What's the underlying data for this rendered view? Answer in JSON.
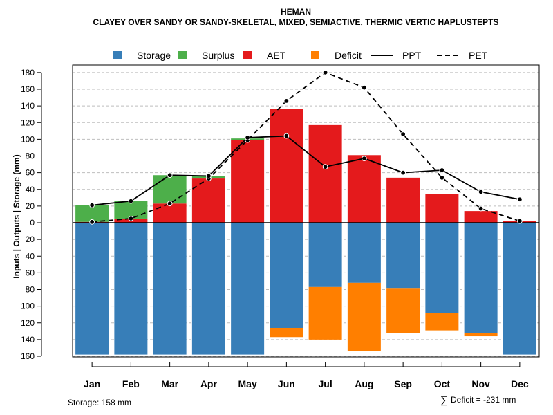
{
  "chart_data": {
    "type": "bar",
    "title": "HEMAN",
    "subtitle": "CLAYEY OVER SANDY OR SANDY-SKELETAL, MIXED, SEMIACTIVE, THERMIC VERTIC HAPLUSTEPTS",
    "ylabel": "Inputs | Outputs | Storage    (mm)",
    "ylim": [
      -160,
      180
    ],
    "categories": [
      "Jan",
      "Feb",
      "Mar",
      "Apr",
      "May",
      "Jun",
      "Jul",
      "Aug",
      "Sep",
      "Oct",
      "Nov",
      "Dec"
    ],
    "upper_ticks": [
      "20",
      "40",
      "60",
      "80",
      "100",
      "120",
      "140",
      "160",
      "180"
    ],
    "lower_ticks": [
      "0",
      "20",
      "40",
      "60",
      "80",
      "100",
      "120",
      "140",
      "160"
    ],
    "legend": [
      {
        "name": "Storage",
        "kind": "box",
        "color": "#377eb8"
      },
      {
        "name": "Surplus",
        "kind": "box",
        "color": "#4daf4a"
      },
      {
        "name": "AET",
        "kind": "box",
        "color": "#e41a1c"
      },
      {
        "name": "Deficit",
        "kind": "box",
        "color": "#ff7f00"
      },
      {
        "name": "PPT",
        "kind": "solid",
        "color": "#000000"
      },
      {
        "name": "PET",
        "kind": "dashed",
        "color": "#000000"
      }
    ],
    "series": [
      {
        "name": "AET",
        "values": [
          1,
          5,
          23,
          53,
          99,
          136,
          117,
          81,
          54,
          34,
          14,
          2
        ]
      },
      {
        "name": "Surplus",
        "values": [
          20,
          21,
          34,
          3,
          2,
          0,
          0,
          0,
          0,
          0,
          0,
          0
        ]
      },
      {
        "name": "Storage",
        "values": [
          158,
          158,
          158,
          158,
          158,
          126,
          77,
          72,
          79,
          108,
          132,
          158
        ]
      },
      {
        "name": "Deficit",
        "values": [
          0,
          0,
          0,
          0,
          0,
          11,
          63,
          82,
          53,
          21,
          4,
          0
        ]
      },
      {
        "name": "PPT",
        "values": [
          21,
          26,
          57,
          56,
          102,
          104,
          67,
          77,
          60,
          63,
          37,
          28
        ]
      },
      {
        "name": "PET",
        "values": [
          1,
          5,
          23,
          53,
          99,
          146,
          180,
          162,
          106,
          54,
          17,
          2
        ]
      }
    ]
  },
  "footer": {
    "storage_note": "Storage: 158 mm",
    "deficit_symbol": "∑",
    "deficit_note": "Deficit = -231 mm"
  },
  "colors": {
    "storage": "#377eb8",
    "surplus": "#4daf4a",
    "aet": "#e41a1c",
    "deficit": "#ff7f00",
    "grid": "#bebebe"
  }
}
